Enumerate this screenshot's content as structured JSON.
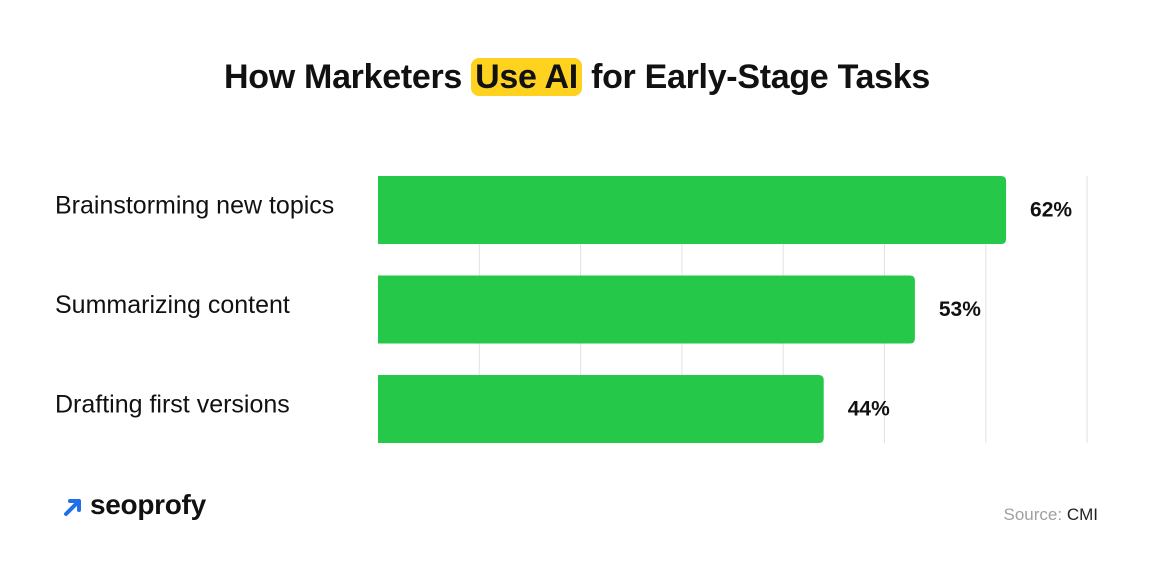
{
  "title": {
    "before": "How Marketers ",
    "highlight": "Use AI",
    "after": " for Early-Stage Tasks"
  },
  "brand": {
    "name": "seoprofy",
    "icon": "arrow-up-right-icon"
  },
  "source": {
    "label": "Source:",
    "value": "CMI"
  },
  "colors": {
    "bar": "#26c84a",
    "highlight": "#ffd21f",
    "grid": "#e2e2e2"
  },
  "chart_data": {
    "type": "bar",
    "orientation": "horizontal",
    "categories": [
      "Brainstorming new topics",
      "Summarizing content",
      "Drafting first versions"
    ],
    "values": [
      62,
      53,
      44
    ],
    "value_labels": [
      "62%",
      "53%",
      "44%"
    ],
    "xlim": [
      0,
      70
    ],
    "grid": true,
    "legend": "none"
  }
}
